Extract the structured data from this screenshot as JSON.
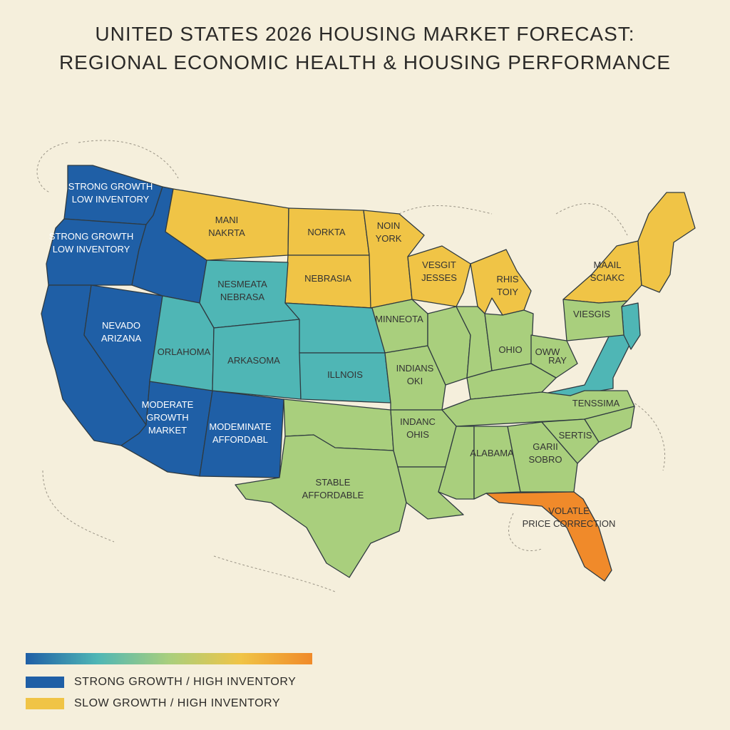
{
  "title": {
    "line1": "UNITED STATES 2026 HOUSING MARKET FORECAST:",
    "line2": "REGIONAL ECONOMIC HEALTH & HOUSING PERFORMANCE"
  },
  "colors": {
    "strong": "#1f5fa6",
    "teal": "#4fb6b5",
    "stable": "#a9cf7d",
    "slow": "#f0c446",
    "volatile": "#f08a2a",
    "background": "#f5efdc"
  },
  "regions": [
    {
      "id": "wa",
      "color_key": "strong",
      "lines": [
        "STRONG GROWTH",
        "LOW INVENTORY"
      ]
    },
    {
      "id": "or",
      "color_key": "strong",
      "lines": [
        "STRONG GROWTH",
        "LOW INVENTORY"
      ]
    },
    {
      "id": "ca",
      "color_key": "strong",
      "lines": []
    },
    {
      "id": "nv",
      "color_key": "strong",
      "lines": [
        "NEVADO",
        "ARIZANA"
      ]
    },
    {
      "id": "id",
      "color_key": "strong",
      "lines": []
    },
    {
      "id": "az",
      "color_key": "strong",
      "lines": [
        "MODERATE",
        "GROWTH",
        "MARKET"
      ]
    },
    {
      "id": "nm",
      "color_key": "strong",
      "lines": [
        "MODEMINATE",
        "AFFORDABL"
      ]
    },
    {
      "id": "mt",
      "color_key": "slow",
      "lines": [
        "MANI",
        "NAKRTA"
      ]
    },
    {
      "id": "nd",
      "color_key": "slow",
      "lines": [
        "NORKTA"
      ]
    },
    {
      "id": "sd",
      "color_key": "slow",
      "lines": [
        "NEBRASIA"
      ]
    },
    {
      "id": "mn",
      "color_key": "slow",
      "lines": [
        "NOIN",
        "YORK"
      ]
    },
    {
      "id": "wi",
      "color_key": "slow",
      "lines": [
        "VESGIT",
        "JESSES"
      ]
    },
    {
      "id": "mi",
      "color_key": "slow",
      "lines": [
        "RHIS",
        "TOIY"
      ]
    },
    {
      "id": "ny",
      "color_key": "slow",
      "lines": [
        "MAAIL",
        "SCIAKC"
      ]
    },
    {
      "id": "ne_states",
      "color_key": "slow",
      "lines": []
    },
    {
      "id": "wy",
      "color_key": "teal",
      "lines": [
        "NESMEATA",
        "NEBRASA"
      ]
    },
    {
      "id": "ut",
      "color_key": "teal",
      "lines": [
        "ORLAHOMA"
      ]
    },
    {
      "id": "co",
      "color_key": "teal",
      "lines": [
        "ARKASOMA"
      ]
    },
    {
      "id": "ne",
      "color_key": "teal",
      "lines": []
    },
    {
      "id": "ks",
      "color_key": "teal",
      "lines": [
        "ILLNOIS"
      ]
    },
    {
      "id": "va",
      "color_key": "teal",
      "lines": []
    },
    {
      "id": "nj",
      "color_key": "teal",
      "lines": []
    },
    {
      "id": "ia",
      "color_key": "stable",
      "lines": [
        "MINNEOTA"
      ]
    },
    {
      "id": "mo",
      "color_key": "stable",
      "lines": [
        "INDIANS",
        "OKI"
      ]
    },
    {
      "id": "il",
      "color_key": "stable",
      "lines": []
    },
    {
      "id": "in",
      "color_key": "stable",
      "lines": []
    },
    {
      "id": "oh",
      "color_key": "stable",
      "lines": [
        "OHIO"
      ]
    },
    {
      "id": "pa",
      "color_key": "stable",
      "lines": [
        "VIESGIS"
      ]
    },
    {
      "id": "wv",
      "color_key": "stable",
      "lines": [
        "OWW"
      ]
    },
    {
      "id": "ky",
      "color_key": "stable",
      "lines": [
        "RAY"
      ]
    },
    {
      "id": "tn",
      "color_key": "stable",
      "lines": [
        "TENSSIMA"
      ]
    },
    {
      "id": "ok",
      "color_key": "stable",
      "lines": []
    },
    {
      "id": "tx",
      "color_key": "stable",
      "lines": [
        "STABLE",
        "AFFORDABLE"
      ]
    },
    {
      "id": "ar",
      "color_key": "stable",
      "lines": [
        "INDANC",
        "OHIS"
      ]
    },
    {
      "id": "la",
      "color_key": "stable",
      "lines": []
    },
    {
      "id": "ms",
      "color_key": "stable",
      "lines": []
    },
    {
      "id": "al",
      "color_key": "stable",
      "lines": [
        "ALABAMA"
      ]
    },
    {
      "id": "ga",
      "color_key": "stable",
      "lines": [
        "GARII",
        "SOBRO"
      ]
    },
    {
      "id": "sc",
      "color_key": "stable",
      "lines": [
        "SERTIS"
      ]
    },
    {
      "id": "nc",
      "color_key": "stable",
      "lines": []
    },
    {
      "id": "fl",
      "color_key": "volatile",
      "lines": [
        "VOLATLE",
        "PRICE CORRECTION"
      ]
    }
  ],
  "legend": {
    "gradient": [
      "#1f5fa6",
      "#4fb6b5",
      "#a9cf7d",
      "#f0c446",
      "#f08a2a"
    ],
    "items": [
      {
        "color": "#1f5fa6",
        "label": "STRONG GROWTH / HIGH INVENTORY"
      },
      {
        "color": "#f0c446",
        "label": "SLOW GROWTH / HIGH INVENTORY"
      }
    ]
  }
}
